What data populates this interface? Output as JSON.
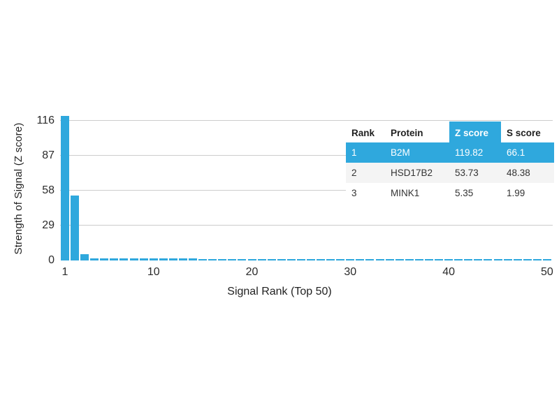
{
  "chart_data": {
    "type": "bar",
    "title": "",
    "xlabel": "Signal Rank (Top 50)",
    "ylabel": "Strength of Signal (Z score)",
    "x_ticks": [
      1,
      10,
      20,
      30,
      40,
      50
    ],
    "y_ticks": [
      0,
      29,
      58,
      87,
      116
    ],
    "ylim": [
      0,
      129
    ],
    "grid": "horizontal",
    "legend": "none",
    "bar_color": "#2FA8DD",
    "categories_note": "x = signal rank 1..50",
    "values": [
      119.82,
      53.73,
      5.35,
      1.7,
      1.68,
      1.65,
      1.63,
      1.6,
      1.58,
      1.55,
      1.53,
      1.5,
      1.48,
      1.46,
      1.44,
      1.42,
      1.4,
      1.38,
      1.36,
      1.34,
      1.32,
      1.3,
      1.28,
      1.26,
      1.24,
      1.22,
      1.2,
      1.18,
      1.16,
      1.14,
      1.12,
      1.1,
      1.08,
      1.06,
      1.04,
      1.02,
      1.0,
      0.98,
      0.96,
      0.95,
      0.94,
      0.93,
      0.92,
      0.91,
      0.9,
      0.89,
      0.88,
      0.87,
      0.86,
      0.85
    ]
  },
  "table": {
    "headers": [
      "Rank",
      "Protein",
      "Z score",
      "S score"
    ],
    "highlight_color": "#2FA8DD",
    "rows": [
      {
        "rank": "1",
        "protein": "B2M",
        "z_score": "119.82",
        "s_score": "66.1"
      },
      {
        "rank": "2",
        "protein": "HSD17B2",
        "z_score": "53.73",
        "s_score": "48.38"
      },
      {
        "rank": "3",
        "protein": "MINK1",
        "z_score": "5.35",
        "s_score": "1.99"
      }
    ]
  }
}
